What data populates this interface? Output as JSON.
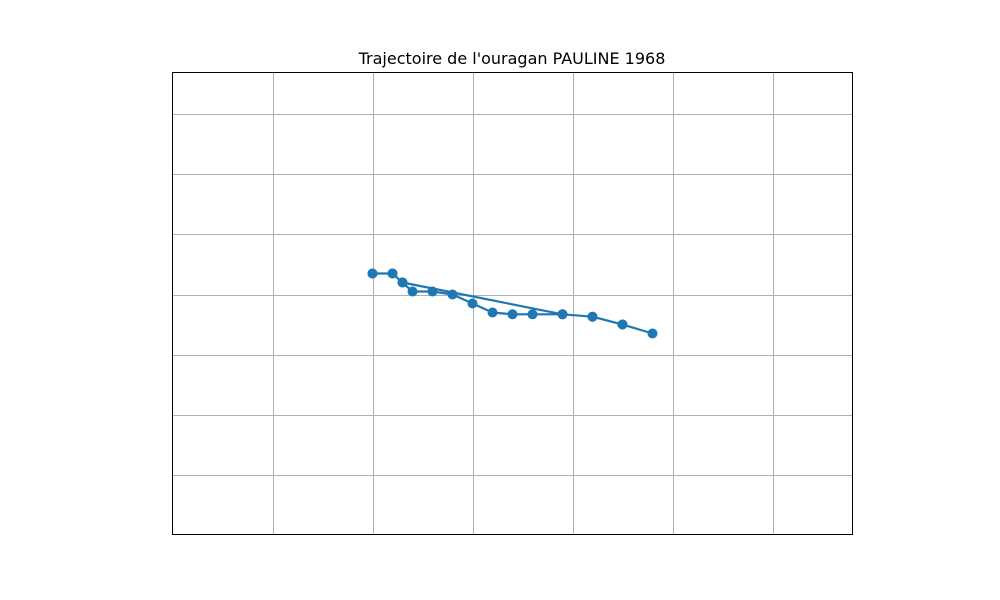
{
  "chart_data": {
    "type": "line",
    "title": "Trajectoire de l'ouragan PAULINE 1968",
    "xlabel": "",
    "ylabel": "",
    "xlim": [
      -122.0,
      -115.2
    ],
    "ylim": [
      11.0,
      18.7
    ],
    "xticks": [
      -121.0,
      -120.0,
      -119.0,
      -118.0,
      -117.0,
      -116.0
    ],
    "yticks": [
      12.0,
      13.0,
      14.0,
      15.0,
      16.0,
      17.0,
      18.0
    ],
    "grid": true,
    "legend": "none",
    "series": [
      {
        "color": "#1f77b4",
        "marker": "circle",
        "points": [
          {
            "lon": -120.0,
            "lat": 15.35
          },
          {
            "lon": -119.8,
            "lat": 15.35
          },
          {
            "lon": -119.7,
            "lat": 15.2
          },
          {
            "lon": -119.6,
            "lat": 15.05
          },
          {
            "lon": -119.4,
            "lat": 15.05
          },
          {
            "lon": -119.2,
            "lat": 15.0
          },
          {
            "lon": -119.0,
            "lat": 14.85
          },
          {
            "lon": -118.8,
            "lat": 14.7
          },
          {
            "lon": -118.6,
            "lat": 14.67
          },
          {
            "lon": -118.4,
            "lat": 14.67
          },
          {
            "lon": -118.1,
            "lat": 14.67
          },
          {
            "lon": -117.8,
            "lat": 14.63
          },
          {
            "lon": -117.5,
            "lat": 14.5
          },
          {
            "lon": -117.2,
            "lat": 14.35
          },
          {
            "lon": -117.5,
            "lat": 14.5
          },
          {
            "lon": -117.8,
            "lat": 14.63
          },
          {
            "lon": -118.1,
            "lat": 14.67
          },
          {
            "lon": -119.7,
            "lat": 15.2
          },
          {
            "lon": -119.8,
            "lat": 15.35
          },
          {
            "lon": -120.0,
            "lat": 15.35
          }
        ]
      }
    ]
  }
}
